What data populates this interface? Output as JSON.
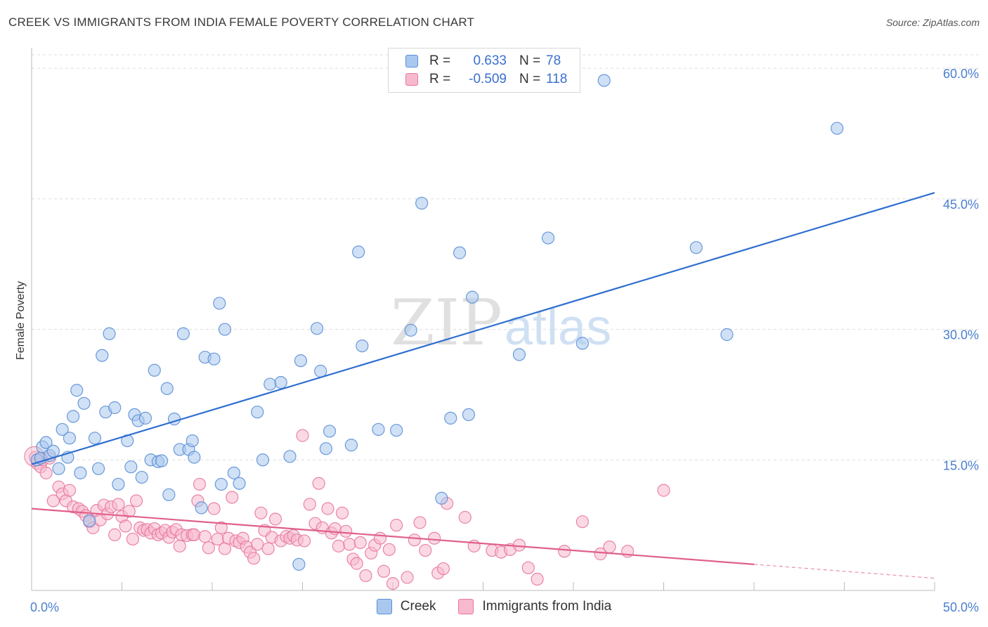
{
  "title": "CREEK VS IMMIGRANTS FROM INDIA FEMALE POVERTY CORRELATION CHART",
  "source": "Source: ZipAtlas.com",
  "legend": {
    "rows": [
      {
        "r_label": "R =",
        "r_value": "0.633",
        "n_label": "N =",
        "n_value": "78"
      },
      {
        "r_label": "R =",
        "r_value": "-0.509",
        "n_label": "N =",
        "n_value": "118"
      }
    ]
  },
  "watermark": {
    "zip": "ZIP",
    "atlas": "atlas"
  },
  "colors": {
    "creek_fill": "#a9c8ee",
    "creek_stroke": "#5b8fd6",
    "creek_line": "#2f6fd0",
    "india_fill": "#f7b9cd",
    "india_stroke": "#e8789c",
    "india_line": "#e0608c",
    "tick_text": "#4a7fd0",
    "grid": "#dcdcdc"
  },
  "chart_data": {
    "type": "scatter",
    "title": "CREEK VS IMMIGRANTS FROM INDIA FEMALE POVERTY CORRELATION CHART",
    "xlabel": "",
    "ylabel": "Female Poverty",
    "xlim": [
      0,
      50
    ],
    "ylim": [
      0,
      63
    ],
    "x_tick_labels": [
      {
        "value": 0,
        "label": "0.0%"
      },
      {
        "value": 50,
        "label": "50.0%"
      }
    ],
    "y_tick_labels": [
      {
        "value": 15,
        "label": "15.0%"
      },
      {
        "value": 30,
        "label": "30.0%"
      },
      {
        "value": 45,
        "label": "45.0%"
      },
      {
        "value": 60,
        "label": "60.0%"
      }
    ],
    "series": [
      {
        "name": "Creek",
        "r": 0.633,
        "n": 78,
        "trend": {
          "x0": 0,
          "y0": 14.5,
          "x1": 50,
          "y1": 45.7,
          "x_solid_end": 50
        },
        "points": [
          [
            0.3,
            15.0
          ],
          [
            0.5,
            15.2
          ],
          [
            0.6,
            16.5
          ],
          [
            0.8,
            17.0
          ],
          [
            1.0,
            15.5
          ],
          [
            1.2,
            16.0
          ],
          [
            1.5,
            14.0
          ],
          [
            1.7,
            18.5
          ],
          [
            2.0,
            15.3
          ],
          [
            2.1,
            17.5
          ],
          [
            2.3,
            20.0
          ],
          [
            2.5,
            23.0
          ],
          [
            2.7,
            13.5
          ],
          [
            2.9,
            21.5
          ],
          [
            3.2,
            8.0
          ],
          [
            3.5,
            17.5
          ],
          [
            3.7,
            14.0
          ],
          [
            3.9,
            27.0
          ],
          [
            4.1,
            20.5
          ],
          [
            4.3,
            29.5
          ],
          [
            4.6,
            21.0
          ],
          [
            4.8,
            12.2
          ],
          [
            5.3,
            17.2
          ],
          [
            5.5,
            14.2
          ],
          [
            5.7,
            20.2
          ],
          [
            5.9,
            19.5
          ],
          [
            6.1,
            13.0
          ],
          [
            6.3,
            19.8
          ],
          [
            6.6,
            15.0
          ],
          [
            6.8,
            25.3
          ],
          [
            7.0,
            14.8
          ],
          [
            7.2,
            14.9
          ],
          [
            7.5,
            23.2
          ],
          [
            7.6,
            11.0
          ],
          [
            7.9,
            19.7
          ],
          [
            8.2,
            16.2
          ],
          [
            8.4,
            29.5
          ],
          [
            8.7,
            16.2
          ],
          [
            8.9,
            17.2
          ],
          [
            9.0,
            15.3
          ],
          [
            9.4,
            9.5
          ],
          [
            9.6,
            26.8
          ],
          [
            10.1,
            26.6
          ],
          [
            10.4,
            33.0
          ],
          [
            10.5,
            12.2
          ],
          [
            10.7,
            30.0
          ],
          [
            11.2,
            13.5
          ],
          [
            11.5,
            12.3
          ],
          [
            12.5,
            20.5
          ],
          [
            12.8,
            15.0
          ],
          [
            13.2,
            23.7
          ],
          [
            13.8,
            23.9
          ],
          [
            14.3,
            15.4
          ],
          [
            14.8,
            3.0
          ],
          [
            14.9,
            26.4
          ],
          [
            15.8,
            30.1
          ],
          [
            16.0,
            25.2
          ],
          [
            16.3,
            16.3
          ],
          [
            16.5,
            18.3
          ],
          [
            17.7,
            16.7
          ],
          [
            18.1,
            38.9
          ],
          [
            18.3,
            28.1
          ],
          [
            19.2,
            18.5
          ],
          [
            20.2,
            18.4
          ],
          [
            21.0,
            29.9
          ],
          [
            21.6,
            44.5
          ],
          [
            22.7,
            10.6
          ],
          [
            23.2,
            19.8
          ],
          [
            23.7,
            38.8
          ],
          [
            24.2,
            20.2
          ],
          [
            24.4,
            33.7
          ],
          [
            27.0,
            27.1
          ],
          [
            28.6,
            40.5
          ],
          [
            30.5,
            28.4
          ],
          [
            31.7,
            58.6
          ],
          [
            36.8,
            39.4
          ],
          [
            38.5,
            29.4
          ],
          [
            44.6,
            53.1
          ]
        ]
      },
      {
        "name": "Immigrants from India",
        "r": -0.509,
        "n": 118,
        "trend": {
          "x0": 0,
          "y0": 9.4,
          "x1": 50,
          "y1": 1.4,
          "x_solid_end": 40
        },
        "points": [
          [
            0.2,
            15.3
          ],
          [
            0.3,
            14.6
          ],
          [
            0.5,
            14.2
          ],
          [
            0.6,
            15.0
          ],
          [
            0.8,
            13.5
          ],
          [
            1.0,
            15.2
          ],
          [
            1.2,
            10.3
          ],
          [
            1.5,
            11.9
          ],
          [
            1.7,
            11.1
          ],
          [
            1.9,
            10.3
          ],
          [
            2.1,
            11.5
          ],
          [
            2.3,
            9.6
          ],
          [
            2.6,
            9.4
          ],
          [
            2.8,
            9.1
          ],
          [
            3.0,
            8.6
          ],
          [
            3.2,
            7.9
          ],
          [
            3.4,
            7.2
          ],
          [
            3.6,
            9.2
          ],
          [
            3.8,
            8.1
          ],
          [
            4.0,
            9.8
          ],
          [
            4.2,
            8.8
          ],
          [
            4.4,
            9.6
          ],
          [
            4.6,
            6.4
          ],
          [
            4.8,
            9.9
          ],
          [
            5.0,
            8.5
          ],
          [
            5.2,
            7.4
          ],
          [
            5.4,
            9.1
          ],
          [
            5.6,
            5.9
          ],
          [
            5.8,
            10.3
          ],
          [
            6.0,
            7.2
          ],
          [
            6.2,
            6.9
          ],
          [
            6.4,
            7.0
          ],
          [
            6.6,
            6.6
          ],
          [
            6.8,
            7.1
          ],
          [
            7.0,
            6.4
          ],
          [
            7.2,
            6.6
          ],
          [
            7.4,
            6.9
          ],
          [
            7.6,
            6.1
          ],
          [
            7.8,
            6.7
          ],
          [
            8.0,
            7.0
          ],
          [
            8.2,
            5.1
          ],
          [
            8.3,
            6.4
          ],
          [
            8.6,
            6.3
          ],
          [
            8.9,
            6.4
          ],
          [
            9.0,
            6.4
          ],
          [
            9.2,
            10.3
          ],
          [
            9.3,
            12.2
          ],
          [
            9.6,
            6.2
          ],
          [
            9.8,
            4.9
          ],
          [
            10.1,
            9.4
          ],
          [
            10.3,
            5.9
          ],
          [
            10.5,
            7.2
          ],
          [
            10.7,
            4.8
          ],
          [
            10.9,
            6.0
          ],
          [
            11.1,
            10.7
          ],
          [
            11.3,
            5.7
          ],
          [
            11.5,
            5.5
          ],
          [
            11.7,
            6.0
          ],
          [
            11.9,
            5.0
          ],
          [
            12.1,
            4.4
          ],
          [
            12.3,
            3.7
          ],
          [
            12.5,
            5.3
          ],
          [
            12.7,
            8.9
          ],
          [
            12.9,
            6.9
          ],
          [
            13.1,
            4.8
          ],
          [
            13.3,
            6.1
          ],
          [
            13.5,
            8.2
          ],
          [
            13.8,
            5.7
          ],
          [
            14.1,
            6.2
          ],
          [
            14.3,
            6.0
          ],
          [
            14.5,
            6.3
          ],
          [
            14.7,
            5.8
          ],
          [
            15.0,
            17.8
          ],
          [
            15.1,
            5.7
          ],
          [
            15.4,
            9.9
          ],
          [
            15.7,
            7.7
          ],
          [
            15.9,
            12.3
          ],
          [
            16.1,
            7.2
          ],
          [
            16.4,
            9.4
          ],
          [
            16.6,
            6.6
          ],
          [
            16.8,
            7.1
          ],
          [
            17.0,
            5.1
          ],
          [
            17.2,
            8.9
          ],
          [
            17.4,
            6.8
          ],
          [
            17.6,
            5.3
          ],
          [
            17.8,
            3.6
          ],
          [
            18.0,
            3.1
          ],
          [
            18.2,
            5.5
          ],
          [
            18.5,
            1.7
          ],
          [
            18.8,
            4.3
          ],
          [
            19.0,
            5.2
          ],
          [
            19.3,
            6.0
          ],
          [
            19.5,
            2.2
          ],
          [
            19.8,
            4.7
          ],
          [
            20.2,
            7.5
          ],
          [
            20.8,
            1.5
          ],
          [
            21.2,
            5.8
          ],
          [
            21.5,
            7.8
          ],
          [
            21.8,
            4.6
          ],
          [
            22.3,
            6.0
          ],
          [
            22.5,
            2.0
          ],
          [
            22.8,
            2.5
          ],
          [
            23.0,
            10.0
          ],
          [
            24.0,
            8.4
          ],
          [
            24.5,
            5.1
          ],
          [
            25.5,
            4.6
          ],
          [
            26.0,
            4.4
          ],
          [
            26.5,
            4.7
          ],
          [
            27.0,
            5.2
          ],
          [
            27.5,
            2.6
          ],
          [
            28.0,
            1.3
          ],
          [
            29.5,
            4.5
          ],
          [
            30.5,
            7.9
          ],
          [
            31.5,
            4.2
          ],
          [
            32.0,
            5.0
          ],
          [
            33.0,
            4.5
          ],
          [
            35.0,
            11.5
          ],
          [
            20.0,
            0.8
          ]
        ]
      }
    ]
  }
}
